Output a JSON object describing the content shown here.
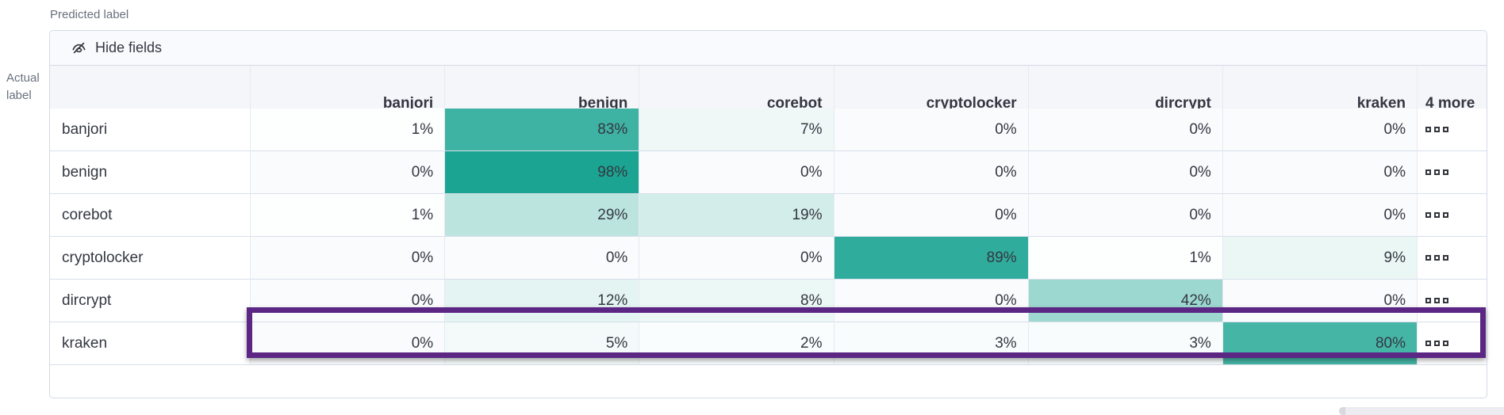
{
  "panel": {
    "predicted_label": "Predicted label",
    "actual_label": "Actual label",
    "toolbar": {
      "hide_fields_label": "Hide fields",
      "icon": "eye-closed-icon"
    },
    "more_cell_icon": "boxes-horizontal-icon"
  },
  "chart_data": {
    "type": "heatmap",
    "title": "Confusion matrix",
    "xlabel": "Predicted label",
    "ylabel": "Actual label",
    "columns": [
      "banjori",
      "benign",
      "corebot",
      "cryptolocker",
      "dircrypt",
      "kraken"
    ],
    "extra_columns_label": "4 more",
    "rows": [
      "banjori",
      "benign",
      "corebot",
      "cryptolocker",
      "dircrypt",
      "kraken"
    ],
    "values_percent": [
      [
        1,
        83,
        7,
        0,
        0,
        0
      ],
      [
        0,
        98,
        0,
        0,
        0,
        0
      ],
      [
        1,
        29,
        19,
        0,
        0,
        0
      ],
      [
        0,
        0,
        0,
        89,
        1,
        9
      ],
      [
        0,
        12,
        8,
        0,
        42,
        0
      ],
      [
        0,
        5,
        2,
        3,
        3,
        80
      ]
    ],
    "value_suffix": "%",
    "highlighted_row": "dircrypt",
    "heat_scale": {
      "zero_color": "#f9fbfd",
      "max_color": "#16a290"
    },
    "highlight_color": "#5c2684",
    "legend": "none",
    "grid": true
  }
}
